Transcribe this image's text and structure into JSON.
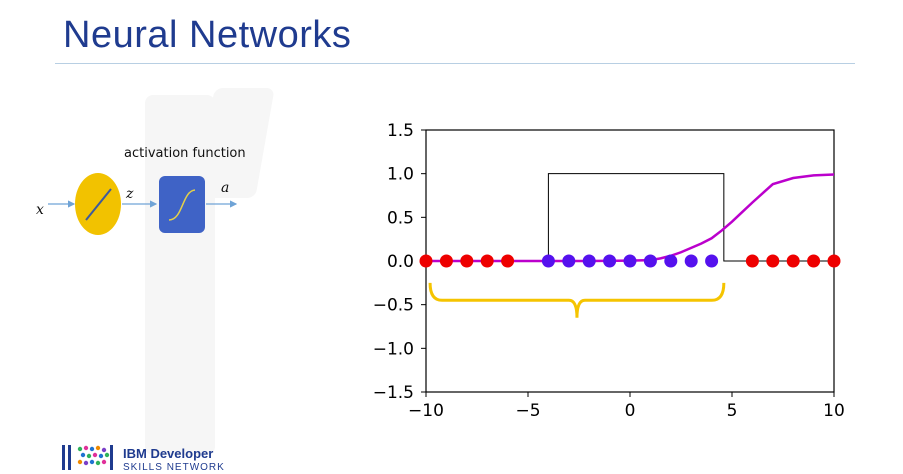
{
  "slide": {
    "title": "Neural Networks"
  },
  "diagram": {
    "input_label": "x",
    "z_label": "z",
    "output_label": "a",
    "activation_label": "activation function",
    "neuron_color": "#f2c200",
    "activation_box_color": "#3f63c6"
  },
  "logo": {
    "line1": "IBM Developer",
    "line2": "SKILLS NETWORK"
  },
  "chart_data": {
    "type": "scatter",
    "xlim": [
      -10,
      10
    ],
    "ylim": [
      -1.5,
      1.5
    ],
    "xticks": [
      -10,
      -5,
      0,
      5,
      10
    ],
    "xtick_labels": [
      "−10",
      "−5",
      "0",
      "5",
      "10"
    ],
    "yticks": [
      1.5,
      1.0,
      0.5,
      0.0,
      -0.5,
      -1.0,
      -1.5
    ],
    "ytick_labels": [
      "1.5",
      "1.0",
      "0.5",
      "0.0",
      "−0.5",
      "−1.0",
      "−1.5"
    ],
    "series": [
      {
        "label": "red points",
        "color": "#ee0000",
        "x": [
          -10,
          -9,
          -8,
          -7,
          -6,
          6,
          7,
          8,
          9,
          10
        ],
        "y": [
          0,
          0,
          0,
          0,
          0,
          0,
          0,
          0,
          0,
          0
        ]
      },
      {
        "label": "blue points",
        "color": "#5511ee",
        "x": [
          -4,
          -3,
          -2,
          -1,
          0,
          1,
          2,
          3,
          4
        ],
        "y": [
          0,
          0,
          0,
          0,
          0,
          0,
          0,
          0,
          0
        ]
      }
    ],
    "sigmoid_curve": {
      "color": "#bb00cc",
      "x": [
        -10,
        -6,
        -2,
        0,
        1,
        1.5,
        2,
        2.5,
        3,
        3.5,
        4,
        4.5,
        5,
        5.5,
        6,
        7,
        8,
        9,
        10
      ],
      "y": [
        0.0,
        0.0,
        0.0,
        0.005,
        0.01,
        0.03,
        0.06,
        0.1,
        0.15,
        0.2,
        0.26,
        0.35,
        0.45,
        0.56,
        0.67,
        0.88,
        0.95,
        0.98,
        0.99
      ]
    },
    "box_function": {
      "color": "#000000",
      "x": [
        -10,
        -4,
        -4,
        4.6,
        4.6,
        10
      ],
      "y": [
        0,
        0,
        1,
        1,
        0,
        0
      ]
    },
    "brace": {
      "color": "#f5c400",
      "x_range": [
        -9.8,
        4.6
      ],
      "y": -0.45
    }
  }
}
